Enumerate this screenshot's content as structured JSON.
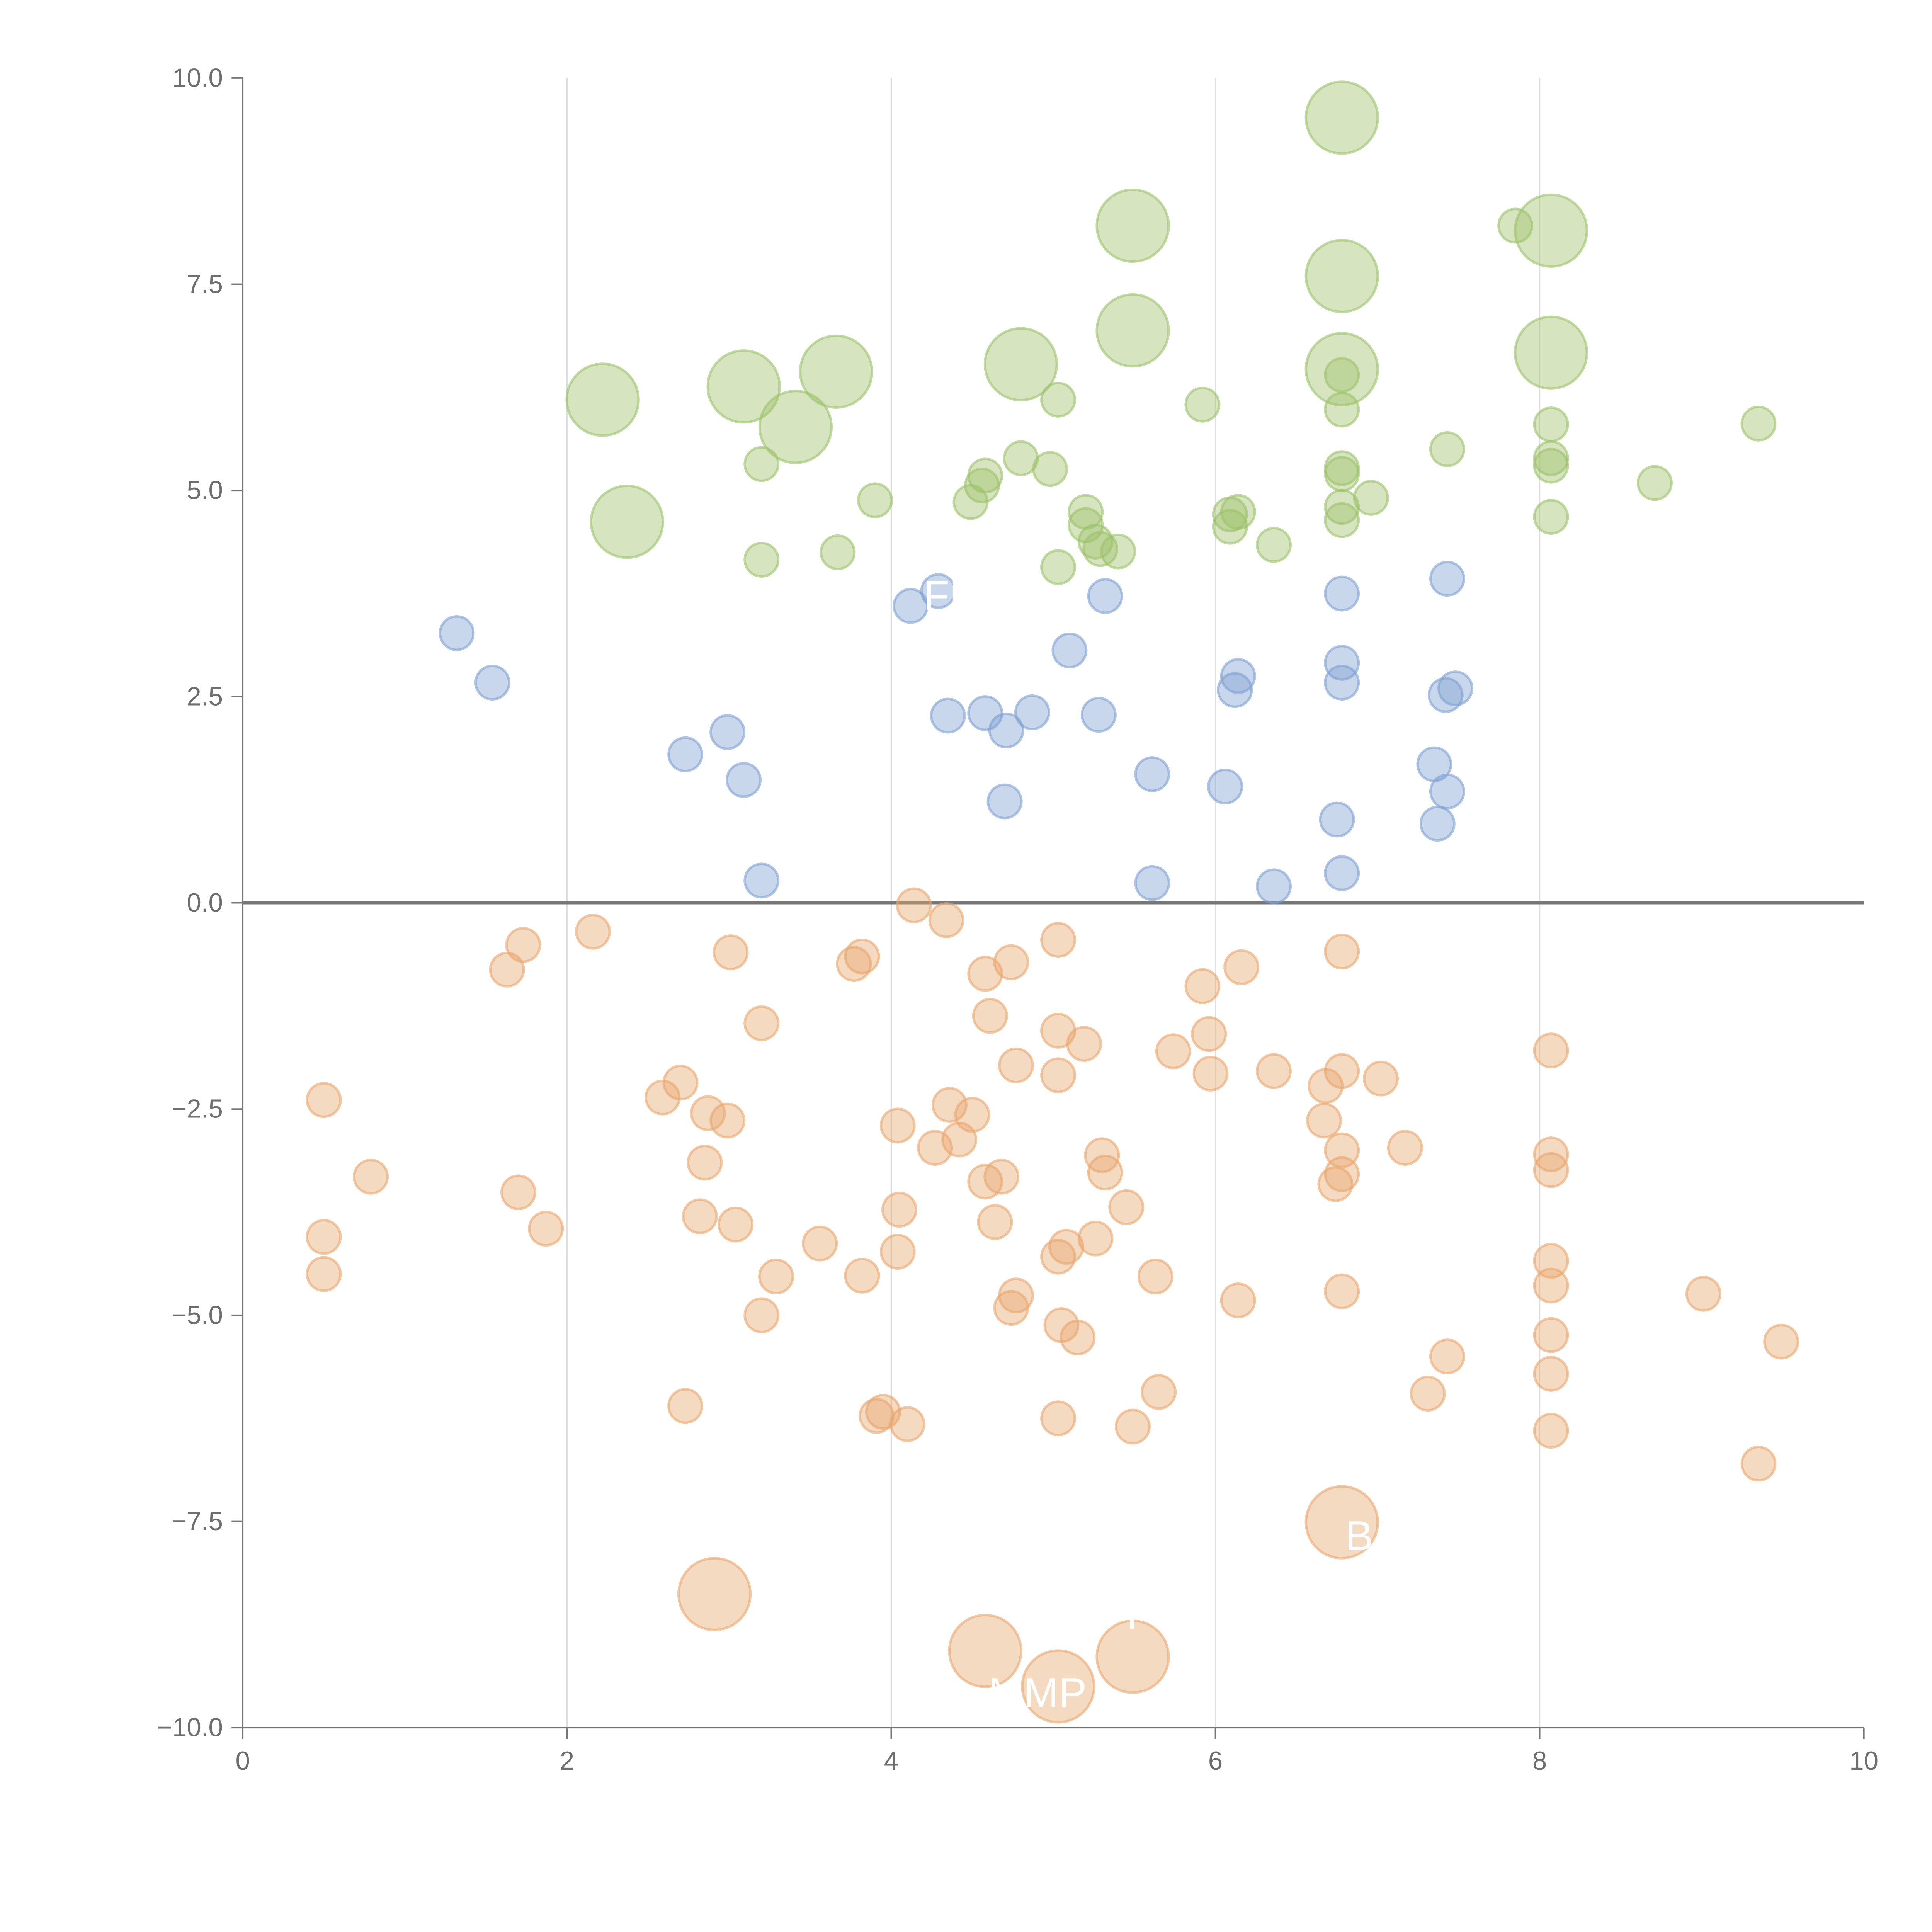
{
  "chart_data": {
    "type": "scatter",
    "title": "",
    "xlabel": "",
    "ylabel": "",
    "xlim": [
      0,
      10
    ],
    "ylim": [
      -10,
      10
    ],
    "xticks": [
      "0",
      "2",
      "4",
      "6",
      "8",
      "10"
    ],
    "xtick_values": [
      0,
      2,
      4,
      6,
      8,
      10
    ],
    "yticks": [
      "10.0",
      "7.5",
      "5.0",
      "2.5",
      "0.0",
      "−2.5",
      "−5.0",
      "−7.5",
      "−10.0"
    ],
    "ytick_values": [
      10,
      7.5,
      5,
      2.5,
      0,
      -2.5,
      -5,
      -7.5,
      -10
    ],
    "vertical_gridlines_at": [
      2,
      4,
      6,
      8
    ],
    "zero_line": 0,
    "legend": "none",
    "series": [
      {
        "name": "green",
        "color": "#9dc16a",
        "points": [
          [
            6.78,
            9.52,
            2
          ],
          [
            5.49,
            8.21,
            2
          ],
          [
            8.07,
            8.15,
            2
          ],
          [
            6.78,
            7.6,
            2
          ],
          [
            5.49,
            6.94,
            2
          ],
          [
            8.07,
            6.67,
            2
          ],
          [
            4.8,
            6.53,
            2
          ],
          [
            6.78,
            6.47,
            2
          ],
          [
            3.66,
            6.44,
            2
          ],
          [
            3.09,
            6.26,
            2
          ],
          [
            2.22,
            6.1,
            2
          ],
          [
            3.41,
            5.77,
            2
          ],
          [
            2.37,
            4.62,
            2
          ],
          [
            7.85,
            8.21,
            1
          ],
          [
            5.03,
            6.1,
            1
          ],
          [
            5.92,
            6.04,
            1
          ],
          [
            6.78,
            6.4,
            1
          ],
          [
            6.78,
            5.98,
            1
          ],
          [
            9.35,
            5.81,
            1
          ],
          [
            8.07,
            5.8,
            1
          ],
          [
            7.43,
            5.5,
            1
          ],
          [
            8.07,
            5.39,
            1
          ],
          [
            8.07,
            5.3,
            1
          ],
          [
            3.2,
            5.32,
            1
          ],
          [
            4.8,
            5.39,
            1
          ],
          [
            4.98,
            5.26,
            1
          ],
          [
            4.58,
            5.18,
            1
          ],
          [
            4.56,
            5.06,
            1
          ],
          [
            6.78,
            5.27,
            1
          ],
          [
            6.78,
            5.2,
            1
          ],
          [
            8.71,
            5.09,
            1
          ],
          [
            3.9,
            4.88,
            1
          ],
          [
            4.49,
            4.86,
            1
          ],
          [
            6.96,
            4.91,
            1
          ],
          [
            6.78,
            4.8,
            1
          ],
          [
            6.78,
            4.64,
            1
          ],
          [
            8.07,
            4.68,
            1
          ],
          [
            5.2,
            4.74,
            1
          ],
          [
            5.2,
            4.58,
            1
          ],
          [
            6.09,
            4.71,
            1
          ],
          [
            6.14,
            4.74,
            1
          ],
          [
            6.09,
            4.56,
            1
          ],
          [
            5.26,
            4.38,
            1
          ],
          [
            5.29,
            4.29,
            1
          ],
          [
            5.4,
            4.26,
            1
          ],
          [
            6.36,
            4.34,
            1
          ],
          [
            3.67,
            4.25,
            1
          ],
          [
            3.2,
            4.16,
            1
          ],
          [
            5.03,
            4.07,
            1
          ]
        ]
      },
      {
        "name": "blue",
        "color": "#7fa0d2",
        "points": [
          [
            1.32,
            3.27,
            1
          ],
          [
            1.54,
            2.67,
            1
          ],
          [
            4.12,
            3.6,
            1
          ],
          [
            4.29,
            3.78,
            1
          ],
          [
            5.32,
            3.72,
            1
          ],
          [
            5.1,
            3.06,
            1
          ],
          [
            6.78,
            3.75,
            1
          ],
          [
            7.43,
            3.93,
            1
          ],
          [
            6.78,
            2.91,
            1
          ],
          [
            6.14,
            2.75,
            1
          ],
          [
            6.12,
            2.58,
            1
          ],
          [
            6.78,
            2.67,
            1
          ],
          [
            7.48,
            2.6,
            1
          ],
          [
            7.42,
            2.52,
            1
          ],
          [
            2.99,
            2.07,
            1
          ],
          [
            2.73,
            1.8,
            1
          ],
          [
            3.09,
            1.49,
            1
          ],
          [
            4.35,
            2.27,
            1
          ],
          [
            4.58,
            2.3,
            1
          ],
          [
            4.87,
            2.31,
            1
          ],
          [
            4.71,
            2.09,
            1
          ],
          [
            5.28,
            2.28,
            1
          ],
          [
            5.61,
            1.56,
            1
          ],
          [
            6.06,
            1.41,
            1
          ],
          [
            7.35,
            1.68,
            1
          ],
          [
            7.43,
            1.35,
            1
          ],
          [
            4.7,
            1.23,
            1
          ],
          [
            6.75,
            1.01,
            1
          ],
          [
            7.37,
            0.96,
            1
          ],
          [
            3.2,
            0.27,
            1
          ],
          [
            5.61,
            0.24,
            1
          ],
          [
            6.36,
            0.2,
            1
          ],
          [
            6.78,
            0.36,
            1
          ]
        ]
      },
      {
        "name": "orange",
        "color": "#e7a66d",
        "points": [
          [
            6.78,
            -7.51,
            2
          ],
          [
            2.91,
            -8.38,
            2
          ],
          [
            4.58,
            -9.07,
            2
          ],
          [
            5.49,
            -9.14,
            2
          ],
          [
            5.03,
            -9.5,
            2
          ],
          [
            4.14,
            -0.03,
            1
          ],
          [
            4.34,
            -0.21,
            1
          ],
          [
            2.16,
            -0.35,
            1
          ],
          [
            1.73,
            -0.51,
            1
          ],
          [
            1.63,
            -0.81,
            1
          ],
          [
            3.01,
            -0.6,
            1
          ],
          [
            5.03,
            -0.45,
            1
          ],
          [
            6.78,
            -0.59,
            1
          ],
          [
            3.82,
            -0.65,
            1
          ],
          [
            3.77,
            -0.74,
            1
          ],
          [
            4.74,
            -0.72,
            1
          ],
          [
            6.16,
            -0.78,
            1
          ],
          [
            4.58,
            -0.86,
            1
          ],
          [
            5.92,
            -1.01,
            1
          ],
          [
            3.2,
            -1.46,
            1
          ],
          [
            4.61,
            -1.37,
            1
          ],
          [
            5.03,
            -1.55,
            1
          ],
          [
            5.96,
            -1.59,
            1
          ],
          [
            5.19,
            -1.71,
            1
          ],
          [
            5.74,
            -1.8,
            1
          ],
          [
            8.07,
            -1.79,
            1
          ],
          [
            4.77,
            -1.97,
            1
          ],
          [
            5.03,
            -2.09,
            1
          ],
          [
            5.97,
            -2.07,
            1
          ],
          [
            6.36,
            -2.04,
            1
          ],
          [
            6.78,
            -2.04,
            1
          ],
          [
            7.02,
            -2.13,
            1
          ],
          [
            6.68,
            -2.22,
            1
          ],
          [
            0.5,
            -2.39,
            1
          ],
          [
            2.7,
            -2.18,
            1
          ],
          [
            2.59,
            -2.36,
            1
          ],
          [
            2.87,
            -2.55,
            1
          ],
          [
            2.99,
            -2.64,
            1
          ],
          [
            4.36,
            -2.45,
            1
          ],
          [
            4.5,
            -2.57,
            1
          ],
          [
            4.04,
            -2.7,
            1
          ],
          [
            6.67,
            -2.64,
            1
          ],
          [
            4.27,
            -2.97,
            1
          ],
          [
            4.42,
            -2.87,
            1
          ],
          [
            6.78,
            -3.0,
            1
          ],
          [
            7.17,
            -2.97,
            1
          ],
          [
            5.3,
            -3.06,
            1
          ],
          [
            8.07,
            -3.05,
            1
          ],
          [
            2.85,
            -3.15,
            1
          ],
          [
            0.79,
            -3.32,
            1
          ],
          [
            4.68,
            -3.32,
            1
          ],
          [
            5.32,
            -3.27,
            1
          ],
          [
            6.78,
            -3.29,
            1
          ],
          [
            8.07,
            -3.24,
            1
          ],
          [
            4.58,
            -3.38,
            1
          ],
          [
            6.74,
            -3.41,
            1
          ],
          [
            1.7,
            -3.51,
            1
          ],
          [
            5.45,
            -3.69,
            1
          ],
          [
            4.05,
            -3.72,
            1
          ],
          [
            2.82,
            -3.8,
            1
          ],
          [
            3.04,
            -3.9,
            1
          ],
          [
            4.64,
            -3.87,
            1
          ],
          [
            1.87,
            -3.95,
            1
          ],
          [
            0.5,
            -4.05,
            1
          ],
          [
            3.56,
            -4.13,
            1
          ],
          [
            5.26,
            -4.07,
            1
          ],
          [
            5.08,
            -4.17,
            1
          ],
          [
            5.03,
            -4.29,
            1
          ],
          [
            4.04,
            -4.23,
            1
          ],
          [
            8.07,
            -4.34,
            1
          ],
          [
            0.5,
            -4.5,
            1
          ],
          [
            3.29,
            -4.53,
            1
          ],
          [
            3.82,
            -4.52,
            1
          ],
          [
            5.63,
            -4.53,
            1
          ],
          [
            8.07,
            -4.64,
            1
          ],
          [
            6.78,
            -4.71,
            1
          ],
          [
            4.77,
            -4.76,
            1
          ],
          [
            6.14,
            -4.82,
            1
          ],
          [
            9.01,
            -4.74,
            1
          ],
          [
            4.74,
            -4.91,
            1
          ],
          [
            3.2,
            -5.0,
            1
          ],
          [
            5.05,
            -5.12,
            1
          ],
          [
            5.15,
            -5.27,
            1
          ],
          [
            8.07,
            -5.24,
            1
          ],
          [
            9.49,
            -5.32,
            1
          ],
          [
            7.43,
            -5.5,
            1
          ],
          [
            8.07,
            -5.71,
            1
          ],
          [
            5.65,
            -5.93,
            1
          ],
          [
            7.31,
            -5.95,
            1
          ],
          [
            2.73,
            -6.1,
            1
          ],
          [
            3.95,
            -6.17,
            1
          ],
          [
            3.91,
            -6.22,
            1
          ],
          [
            4.1,
            -6.32,
            1
          ],
          [
            5.03,
            -6.25,
            1
          ],
          [
            5.49,
            -6.35,
            1
          ],
          [
            8.07,
            -6.4,
            1
          ],
          [
            9.35,
            -6.8,
            1
          ]
        ]
      }
    ],
    "annotations": [
      {
        "text": "FP",
        "x": 4.2,
        "y": 3.55
      },
      {
        "text": "MMP",
        "x": 4.6,
        "y": -9.75
      },
      {
        "text": "B",
        "x": 6.8,
        "y": -7.85
      },
      {
        "text": "I",
        "x": 5.45,
        "y": -8.8
      }
    ]
  }
}
